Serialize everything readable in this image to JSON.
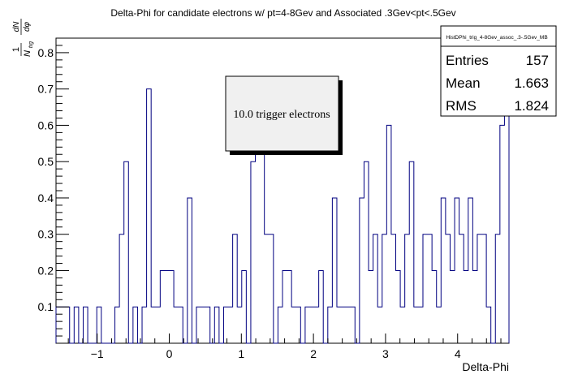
{
  "chart_data": {
    "type": "bar",
    "style": "step-histogram",
    "title": "Delta-Phi for candidate electrons w/ pt=4-8Gev and Associated .3Gev<pt<.5Gev",
    "xlabel": "Delta-Phi",
    "ylabel": "1/N_trg dN/dφ",
    "ylabel_parts": {
      "one": "1",
      "dN": "dN",
      "N": "N",
      "trg": "trg",
      "dphi": "dφ"
    },
    "xlim": [
      -1.5708,
      4.7124
    ],
    "ylim": [
      0,
      0.84
    ],
    "xticks": [
      -1,
      0,
      1,
      2,
      3,
      4
    ],
    "xtick_labels": [
      "−1",
      "0",
      "1",
      "2",
      "3",
      "4"
    ],
    "yticks": [
      0.1,
      0.2,
      0.3,
      0.4,
      0.5,
      0.6,
      0.7,
      0.8
    ],
    "ytick_labels": [
      "0.1",
      "0.2",
      "0.3",
      "0.4",
      "0.5",
      "0.6",
      "0.7",
      "0.8"
    ],
    "line_color": "#000080",
    "bins": {
      "count": 100,
      "low": -1.5708,
      "high": 4.7124,
      "values": [
        0.1,
        0.1,
        0.1,
        0,
        0.1,
        0,
        0.1,
        0,
        0,
        0.1,
        0,
        0,
        0,
        0.1,
        0.3,
        0.5,
        0,
        0.1,
        0,
        0.1,
        0.7,
        0.1,
        0.1,
        0.2,
        0.2,
        0.2,
        0.1,
        0.1,
        0,
        0.4,
        0,
        0.1,
        0.1,
        0.1,
        0,
        0.1,
        0,
        0.1,
        0.1,
        0.3,
        0.1,
        0.2,
        0,
        0.5,
        0.6,
        0.6,
        0.3,
        0.3,
        0,
        0.1,
        0.2,
        0.2,
        0.1,
        0.1,
        0,
        0.1,
        0.1,
        0.1,
        0.2,
        0,
        0.1,
        0.4,
        0.1,
        0.1,
        0.1,
        0.1,
        0,
        0.4,
        0.5,
        0.2,
        0.3,
        0.1,
        0.3,
        0.6,
        0.3,
        0.2,
        0.1,
        0.3,
        0.5,
        0.1,
        0.1,
        0.3,
        0.3,
        0.2,
        0.1,
        0.4,
        0.3,
        0.2,
        0.4,
        0.3,
        0.2,
        0.4,
        0.2,
        0.3,
        0.3,
        0.1,
        0,
        0.3,
        0.6,
        0.8
      ]
    }
  },
  "stats_box": {
    "name": "HistDPhi_trig_4-8Gev_assoc_.3-.5Gev_MB",
    "rows": [
      {
        "label": "Entries",
        "value": "157"
      },
      {
        "label": "Mean",
        "value": "1.663"
      },
      {
        "label": "RMS",
        "value": "1.824"
      }
    ]
  },
  "annotation": {
    "text": "10.0 trigger electrons",
    "fill": "#f0f0f0"
  }
}
